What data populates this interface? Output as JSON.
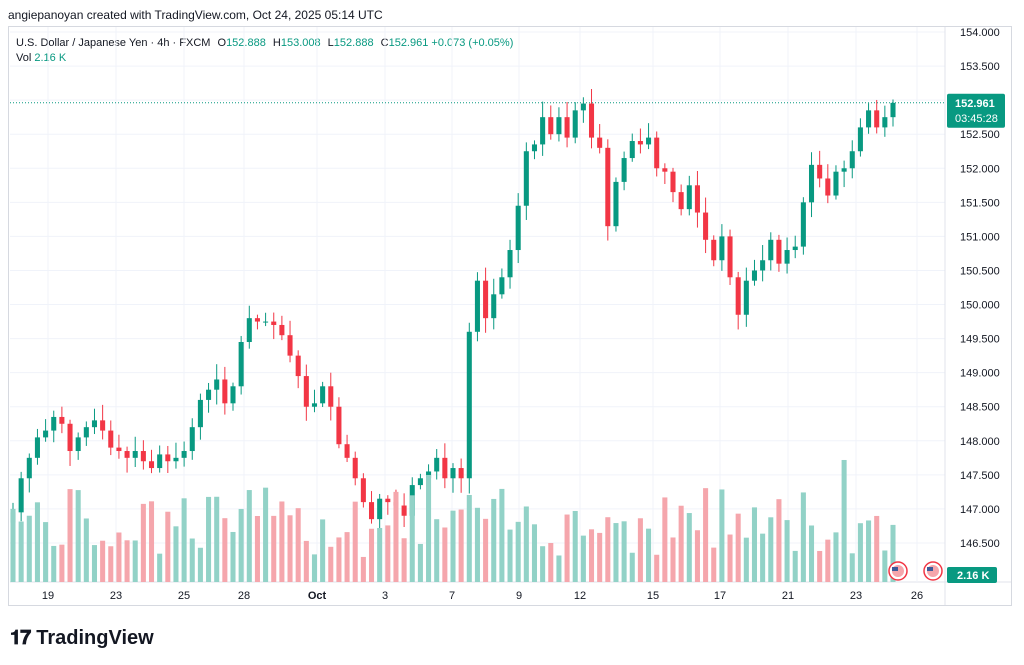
{
  "header": {
    "created_by": "angiepanoyan created with TradingView.com, Oct 24, 2025 05:14 UTC"
  },
  "legend": {
    "symbol": "U.S. Dollar / Japanese Yen · 4h · FXCM",
    "o_label": "O",
    "o_value": "152.888",
    "h_label": "H",
    "h_value": "153.008",
    "l_label": "L",
    "l_value": "152.888",
    "c_label": "C",
    "c_value": "152.961",
    "change": "+0.073 (+0.05%)",
    "vol_label": "Vol",
    "vol_value": "2.16 K"
  },
  "price_tag": {
    "price": "152.961",
    "countdown": "03:45:28"
  },
  "volume_tag": "2.16 K",
  "footer": {
    "brand": "TradingView"
  },
  "colors": {
    "up": "#089981",
    "down": "#f23645",
    "up_vol": "#92d2c7",
    "down_vol": "#f5a6ac",
    "grid": "#f0f3fa"
  },
  "chart_data": {
    "type": "candlestick",
    "instrument": "U.S. Dollar / Japanese Yen",
    "timeframe": "4h",
    "ylim": [
      146.1,
      154.2
    ],
    "y_ticks": [
      "154.000",
      "153.500",
      "153.000",
      "152.500",
      "152.000",
      "151.500",
      "151.000",
      "150.500",
      "150.000",
      "149.500",
      "149.000",
      "148.500",
      "148.000",
      "147.500",
      "147.000",
      "146.500"
    ],
    "x_ticks": [
      "19",
      "23",
      "25",
      "28",
      "Oct",
      "3",
      "7",
      "9",
      "12",
      "15",
      "17",
      "21",
      "23",
      "26"
    ],
    "last_price": 152.961,
    "closes": [
      146.95,
      147.45,
      147.75,
      148.05,
      148.15,
      148.35,
      148.25,
      147.85,
      148.05,
      148.2,
      148.3,
      148.15,
      147.9,
      147.85,
      147.75,
      147.85,
      147.7,
      147.6,
      147.8,
      147.7,
      147.75,
      147.85,
      148.2,
      148.6,
      148.75,
      148.9,
      148.55,
      148.8,
      149.45,
      149.8,
      149.75,
      149.75,
      149.7,
      149.55,
      149.25,
      148.95,
      148.5,
      148.55,
      148.8,
      148.5,
      147.95,
      147.75,
      147.45,
      147.1,
      146.85,
      147.15,
      147.1,
      147.05,
      146.9,
      147.35,
      147.45,
      147.55,
      147.75,
      147.45,
      147.6,
      147.45,
      149.6,
      150.35,
      149.8,
      150.15,
      150.4,
      150.8,
      151.45,
      152.25,
      152.35,
      152.75,
      152.5,
      152.75,
      152.45,
      152.85,
      152.95,
      152.45,
      152.3,
      151.15,
      151.8,
      152.15,
      152.4,
      152.35,
      152.45,
      152.0,
      151.95,
      151.65,
      151.4,
      151.75,
      151.35,
      150.95,
      150.65,
      151.0,
      150.4,
      149.85,
      150.35,
      150.5,
      150.65,
      150.95,
      150.6,
      150.8,
      150.85,
      151.5,
      152.05,
      151.85,
      151.6,
      151.95,
      152.0,
      152.25,
      152.6,
      152.85,
      152.6,
      152.75,
      152.96
    ]
  }
}
